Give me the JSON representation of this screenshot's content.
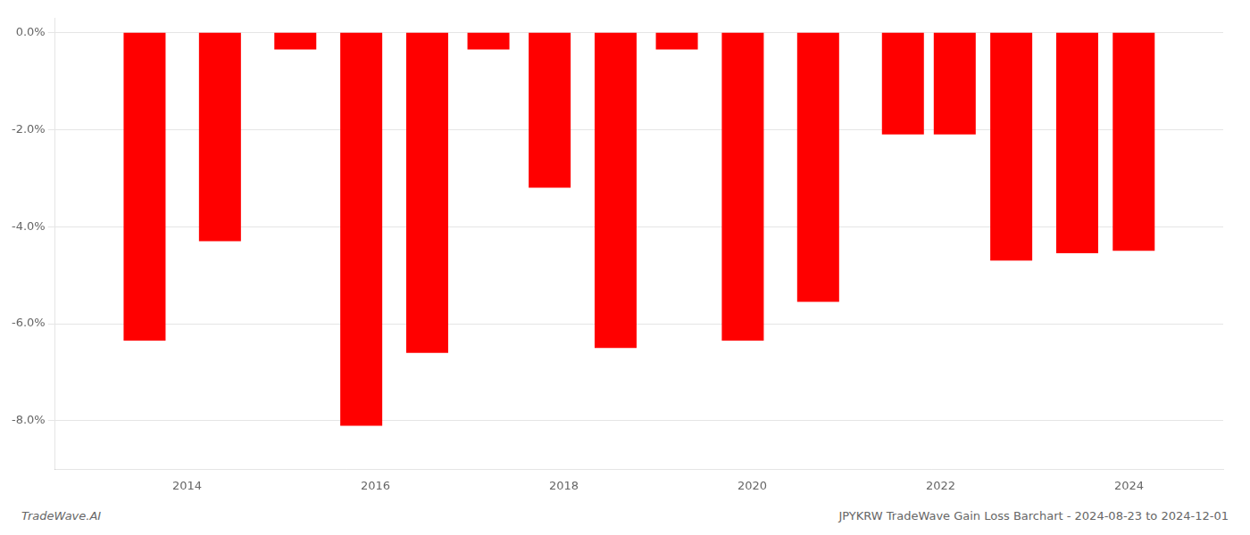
{
  "chart_data": {
    "type": "bar",
    "x": [
      2013.55,
      2014.35,
      2015.15,
      2015.85,
      2016.55,
      2017.2,
      2017.85,
      2018.55,
      2019.2,
      2019.9,
      2020.7,
      2021.6,
      2022.15,
      2022.75,
      2023.45,
      2024.05
    ],
    "values": [
      -6.35,
      -4.3,
      -0.35,
      -8.1,
      -6.6,
      -0.35,
      -3.2,
      -6.5,
      -0.35,
      -6.35,
      -5.55,
      -2.1,
      -2.1,
      -4.7,
      -4.55,
      -4.5
    ],
    "color": "#ff0000",
    "xlim": [
      2012.6,
      2025.0
    ],
    "xticks": [
      2014,
      2016,
      2018,
      2020,
      2022,
      2024
    ],
    "ylim": [
      -9.0,
      0.3
    ],
    "yticks": [
      {
        "value": 0.0,
        "label": "0.0%"
      },
      {
        "value": -2.0,
        "label": "-2.0%"
      },
      {
        "value": -4.0,
        "label": "-4.0%"
      },
      {
        "value": -6.0,
        "label": "-6.0%"
      },
      {
        "value": -8.0,
        "label": "-8.0%"
      }
    ],
    "grid": true,
    "annotations": [
      "TradeWave.AI",
      "JPYKRW TradeWave Gain Loss Barchart - 2024-08-23 to 2024-12-01"
    ]
  }
}
